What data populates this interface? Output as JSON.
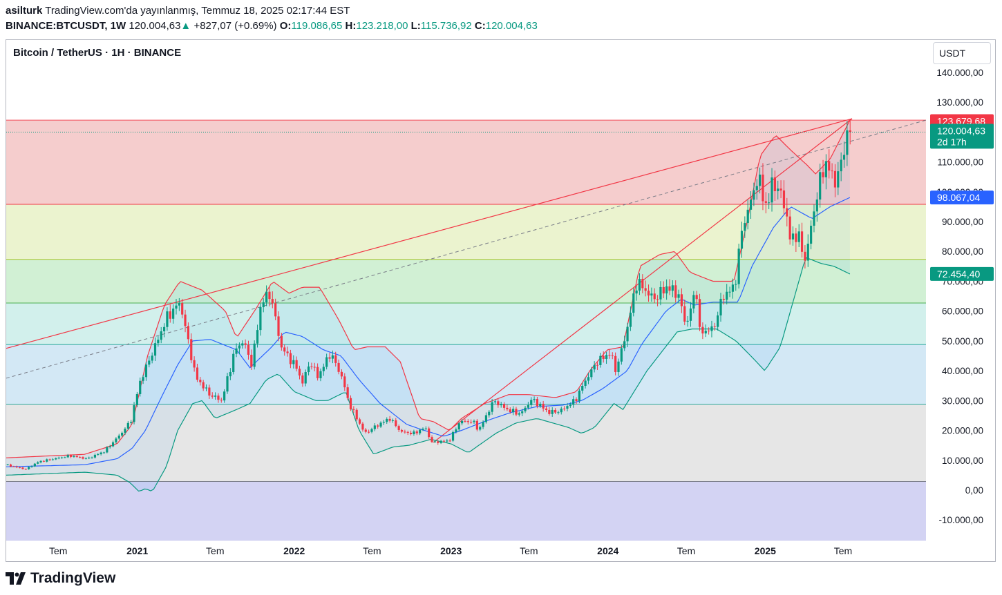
{
  "header": {
    "user": "asilturk",
    "published": "TradingView.com'da yayınlanmış, Temmuz 18, 2025 02:17:44 EST",
    "symbol": "BINANCE:BTCUSDT, 1W",
    "last": "120.004,63",
    "change_arrow": "▲",
    "change": "+827,07 (+0.69%)",
    "o_label": "O:",
    "o_value": "119.086,65",
    "h_label": "H:",
    "h_value": "123.218,00",
    "l_label": "L:",
    "l_value": "115.736,92",
    "c_label": "C:",
    "c_value": "120.004,63"
  },
  "legend_title": "Bitcoin / TetherUS · 1H · BINANCE",
  "currency_button": "USDT",
  "footer": {
    "brand": "TradingView"
  },
  "colors": {
    "bull": "#089981",
    "bear": "#f23645",
    "bb_mid": "#2962ff",
    "bb_upper": "#f23645",
    "bb_lower": "#089981",
    "zone_red": "#f5cdcd",
    "zone_yellow": "#ebf3cf",
    "zone_green": "#d1f0d4",
    "zone_teal": "#d2f0ec",
    "zone_blue": "#d3e8f5",
    "zone_grey": "#e6e6e6",
    "zone_purple": "#d3d3f3"
  },
  "chart_data": {
    "type": "candlestick",
    "interval": "1W",
    "y_axis": {
      "min": -17000,
      "max": 147000,
      "ticks": [
        140000,
        130000,
        110000,
        100000,
        90000,
        80000,
        70000,
        60000,
        50000,
        40000,
        30000,
        20000,
        10000,
        0,
        -10000
      ],
      "tick_labels": [
        "140.000,00",
        "130.000,00",
        "110.000,00",
        "100.000,00",
        "90.000,00",
        "80.000,00",
        "70.000,00",
        "60.000,00",
        "50.000,00",
        "40.000,00",
        "30.000,00",
        "20.000,00",
        "10.000,00",
        "0,00",
        "-10.000,00"
      ]
    },
    "x_axis": {
      "start": "2020-03-02",
      "end": "2026-01-10",
      "ticks": [
        {
          "date": "2020-07-01",
          "label": "Tem"
        },
        {
          "date": "2021-01-01",
          "label": "2021"
        },
        {
          "date": "2021-07-01",
          "label": "Tem"
        },
        {
          "date": "2022-01-01",
          "label": "2022"
        },
        {
          "date": "2022-07-01",
          "label": "Tem"
        },
        {
          "date": "2023-01-01",
          "label": "2023"
        },
        {
          "date": "2023-07-01",
          "label": "Tem"
        },
        {
          "date": "2024-01-01",
          "label": "2024"
        },
        {
          "date": "2024-07-01",
          "label": "Tem"
        },
        {
          "date": "2025-01-01",
          "label": "2025"
        },
        {
          "date": "2025-07-01",
          "label": "Tem"
        }
      ]
    },
    "price_labels": [
      {
        "value": 123679.68,
        "text": "123.679,68",
        "color": "#f23645"
      },
      {
        "value": 120004.63,
        "text": "120.004,63",
        "sub": "2d 17h",
        "color": "#089981"
      },
      {
        "value": 98067.04,
        "text": "98.067,04",
        "color": "#2962ff"
      },
      {
        "value": 72454.4,
        "text": "72.454,40",
        "color": "#089981"
      }
    ],
    "fib_levels": [
      124000,
      95800,
      77300,
      62700,
      48800,
      28800,
      2900,
      -17000
    ],
    "zone_colors": [
      "zone_red",
      "zone_yellow",
      "zone_green",
      "zone_teal",
      "zone_blue",
      "zone_grey",
      "zone_purple"
    ],
    "keypoints": [
      [
        "2020-03-02",
        8500
      ],
      [
        "2020-04-20",
        7000
      ],
      [
        "2020-05-20",
        9500
      ],
      [
        "2020-08-01",
        11500
      ],
      [
        "2020-09-10",
        10500
      ],
      [
        "2020-10-20",
        13000
      ],
      [
        "2020-11-25",
        18500
      ],
      [
        "2020-12-20",
        23000
      ],
      [
        "2021-01-10",
        36000
      ],
      [
        "2021-02-20",
        50000
      ],
      [
        "2021-03-15",
        58000
      ],
      [
        "2021-04-14",
        63000
      ],
      [
        "2021-05-20",
        38000
      ],
      [
        "2021-06-22",
        32000
      ],
      [
        "2021-07-20",
        30000
      ],
      [
        "2021-08-20",
        47000
      ],
      [
        "2021-09-08",
        50000
      ],
      [
        "2021-09-28",
        42000
      ],
      [
        "2021-10-20",
        63000
      ],
      [
        "2021-11-10",
        66000
      ],
      [
        "2021-12-05",
        48000
      ],
      [
        "2022-01-10",
        41000
      ],
      [
        "2022-01-24",
        36000
      ],
      [
        "2022-02-10",
        43000
      ],
      [
        "2022-03-01",
        38000
      ],
      [
        "2022-03-30",
        46000
      ],
      [
        "2022-04-25",
        38000
      ],
      [
        "2022-05-12",
        29000
      ],
      [
        "2022-06-18",
        19000
      ],
      [
        "2022-07-20",
        22000
      ],
      [
        "2022-08-15",
        24000
      ],
      [
        "2022-09-10",
        19500
      ],
      [
        "2022-10-10",
        19000
      ],
      [
        "2022-11-05",
        21000
      ],
      [
        "2022-11-21",
        16000
      ],
      [
        "2022-12-31",
        16500
      ],
      [
        "2023-01-25",
        23000
      ],
      [
        "2023-02-25",
        23000
      ],
      [
        "2023-03-10",
        20000
      ],
      [
        "2023-04-14",
        30000
      ],
      [
        "2023-05-15",
        27000
      ],
      [
        "2023-06-15",
        25500
      ],
      [
        "2023-07-12",
        30500
      ],
      [
        "2023-08-20",
        26000
      ],
      [
        "2023-09-15",
        26500
      ],
      [
        "2023-10-20",
        30000
      ],
      [
        "2023-11-10",
        36000
      ],
      [
        "2023-12-10",
        43000
      ],
      [
        "2024-01-10",
        46000
      ],
      [
        "2024-01-23",
        40000
      ],
      [
        "2024-02-15",
        52000
      ],
      [
        "2024-03-12",
        70000
      ],
      [
        "2024-04-20",
        64000
      ],
      [
        "2024-05-20",
        68000
      ],
      [
        "2024-06-15",
        66000
      ],
      [
        "2024-07-05",
        55000
      ],
      [
        "2024-07-28",
        68000
      ],
      [
        "2024-08-05",
        53000
      ],
      [
        "2024-09-06",
        54000
      ],
      [
        "2024-09-28",
        65000
      ],
      [
        "2024-10-25",
        68000
      ],
      [
        "2024-11-12",
        88000
      ],
      [
        "2024-12-05",
        98000
      ],
      [
        "2024-12-17",
        105000
      ],
      [
        "2025-01-10",
        94000
      ],
      [
        "2025-01-21",
        104000
      ],
      [
        "2025-02-20",
        96000
      ],
      [
        "2025-03-01",
        84000
      ],
      [
        "2025-03-20",
        86000
      ],
      [
        "2025-04-08",
        77000
      ],
      [
        "2025-04-28",
        94000
      ],
      [
        "2025-05-22",
        110000
      ],
      [
        "2025-06-20",
        103000
      ],
      [
        "2025-07-10",
        117000
      ],
      [
        "2025-07-17",
        120004.63
      ]
    ],
    "bb_upper": [
      [
        "2020-03-02",
        10800
      ],
      [
        "2020-09-01",
        12000
      ],
      [
        "2020-11-15",
        15500
      ],
      [
        "2020-12-20",
        22000
      ],
      [
        "2021-01-25",
        45000
      ],
      [
        "2021-03-05",
        62000
      ],
      [
        "2021-04-10",
        70000
      ],
      [
        "2021-06-01",
        67000
      ],
      [
        "2021-07-25",
        60000
      ],
      [
        "2021-08-20",
        51000
      ],
      [
        "2021-10-05",
        61000
      ],
      [
        "2021-11-12",
        70000
      ],
      [
        "2021-12-20",
        66000
      ],
      [
        "2022-01-20",
        68000
      ],
      [
        "2022-03-01",
        68000
      ],
      [
        "2022-04-15",
        57000
      ],
      [
        "2022-05-20",
        47000
      ],
      [
        "2022-06-20",
        48000
      ],
      [
        "2022-08-01",
        48000
      ],
      [
        "2022-09-05",
        43000
      ],
      [
        "2022-10-20",
        24000
      ],
      [
        "2022-11-20",
        23000
      ],
      [
        "2022-12-28",
        20000
      ],
      [
        "2023-01-25",
        24000
      ],
      [
        "2023-03-20",
        29000
      ],
      [
        "2023-05-15",
        32000
      ],
      [
        "2023-07-01",
        32000
      ],
      [
        "2023-09-01",
        31000
      ],
      [
        "2023-10-20",
        33000
      ],
      [
        "2023-11-20",
        40000
      ],
      [
        "2023-12-30",
        47000
      ],
      [
        "2024-02-05",
        48000
      ],
      [
        "2024-03-15",
        75000
      ],
      [
        "2024-05-01",
        79000
      ],
      [
        "2024-06-05",
        80000
      ],
      [
        "2024-07-10",
        73000
      ],
      [
        "2024-09-01",
        70000
      ],
      [
        "2024-10-20",
        70000
      ],
      [
        "2024-11-20",
        90000
      ],
      [
        "2024-12-20",
        112000
      ],
      [
        "2025-01-25",
        119000
      ],
      [
        "2025-03-01",
        114000
      ],
      [
        "2025-04-08",
        109000
      ],
      [
        "2025-04-28",
        106000
      ],
      [
        "2025-06-01",
        111000
      ],
      [
        "2025-07-17",
        124000
      ]
    ],
    "bb_middle": [
      [
        "2020-03-02",
        7800
      ],
      [
        "2020-09-01",
        8500
      ],
      [
        "2020-11-15",
        10500
      ],
      [
        "2020-12-20",
        14000
      ],
      [
        "2021-01-20",
        20000
      ],
      [
        "2021-03-01",
        32000
      ],
      [
        "2021-04-05",
        42000
      ],
      [
        "2021-05-10",
        50000
      ],
      [
        "2021-06-20",
        50500
      ],
      [
        "2021-08-20",
        47000
      ],
      [
        "2021-09-20",
        41000
      ],
      [
        "2021-11-10",
        48000
      ],
      [
        "2021-12-10",
        53000
      ],
      [
        "2022-01-20",
        51500
      ],
      [
        "2022-03-10",
        47000
      ],
      [
        "2022-04-20",
        45000
      ],
      [
        "2022-06-01",
        37000
      ],
      [
        "2022-07-20",
        29000
      ],
      [
        "2022-09-20",
        22000
      ],
      [
        "2022-10-20",
        20500
      ],
      [
        "2022-12-15",
        18000
      ],
      [
        "2023-01-25",
        20000
      ],
      [
        "2023-03-20",
        23000
      ],
      [
        "2023-05-20",
        26000
      ],
      [
        "2023-07-20",
        28000
      ],
      [
        "2023-09-20",
        28500
      ],
      [
        "2023-11-01",
        30000
      ],
      [
        "2023-12-20",
        34000
      ],
      [
        "2024-02-15",
        40000
      ],
      [
        "2024-03-20",
        49000
      ],
      [
        "2024-05-15",
        60000
      ],
      [
        "2024-06-20",
        64000
      ],
      [
        "2024-07-20",
        62000
      ],
      [
        "2024-09-01",
        63000
      ],
      [
        "2024-10-30",
        63000
      ],
      [
        "2024-12-01",
        75000
      ],
      [
        "2025-01-20",
        88000
      ],
      [
        "2025-03-01",
        95000
      ],
      [
        "2025-04-20",
        91000
      ],
      [
        "2025-06-01",
        95000
      ],
      [
        "2025-07-17",
        98067.04
      ]
    ],
    "bb_lower": [
      [
        "2020-03-02",
        5000
      ],
      [
        "2020-09-01",
        6000
      ],
      [
        "2020-11-15",
        5000
      ],
      [
        "2020-12-15",
        2500
      ],
      [
        "2021-01-05",
        -500
      ],
      [
        "2021-01-20",
        500
      ],
      [
        "2021-02-05",
        -500
      ],
      [
        "2021-03-10",
        8000
      ],
      [
        "2021-04-05",
        20000
      ],
      [
        "2021-05-10",
        29000
      ],
      [
        "2021-06-01",
        30000
      ],
      [
        "2021-07-01",
        24000
      ],
      [
        "2021-08-20",
        27000
      ],
      [
        "2021-09-20",
        29000
      ],
      [
        "2021-10-28",
        37000
      ],
      [
        "2021-11-25",
        39000
      ],
      [
        "2022-01-01",
        33000
      ],
      [
        "2022-02-20",
        30000
      ],
      [
        "2022-03-20",
        30000
      ],
      [
        "2022-05-01",
        33000
      ],
      [
        "2022-06-01",
        20000
      ],
      [
        "2022-07-05",
        12000
      ],
      [
        "2022-08-20",
        14500
      ],
      [
        "2022-09-25",
        15000
      ],
      [
        "2022-11-15",
        17000
      ],
      [
        "2023-01-01",
        15500
      ],
      [
        "2023-02-10",
        12500
      ],
      [
        "2023-04-15",
        19000
      ],
      [
        "2023-06-01",
        22500
      ],
      [
        "2023-07-20",
        24000
      ],
      [
        "2023-10-01",
        21000
      ],
      [
        "2023-11-01",
        19000
      ],
      [
        "2023-12-01",
        21000
      ],
      [
        "2024-01-15",
        29000
      ],
      [
        "2024-02-05",
        27000
      ],
      [
        "2024-04-01",
        40000
      ],
      [
        "2024-06-10",
        53000
      ],
      [
        "2024-07-15",
        54000
      ],
      [
        "2024-09-10",
        54000
      ],
      [
        "2024-10-25",
        50000
      ],
      [
        "2024-12-05",
        44000
      ],
      [
        "2024-12-31",
        40000
      ],
      [
        "2025-02-05",
        48000
      ],
      [
        "2025-04-05",
        78000
      ],
      [
        "2025-05-10",
        76000
      ],
      [
        "2025-06-10",
        75000
      ],
      [
        "2025-07-17",
        72454.4
      ]
    ],
    "trendlines": [
      {
        "from": [
          "2020-03-02",
          47500
        ],
        "to": [
          "2025-07-22",
          124500
        ],
        "color": "#f23645",
        "dash": false
      },
      {
        "from": [
          "2022-11-21",
          16000
        ],
        "to": [
          "2025-07-22",
          124500
        ],
        "color": "#f23645",
        "dash": false
      },
      {
        "from": [
          "2020-03-02",
          37500
        ],
        "to": [
          "2026-01-10",
          124000
        ],
        "color": "#787b86",
        "dash": true
      }
    ]
  }
}
